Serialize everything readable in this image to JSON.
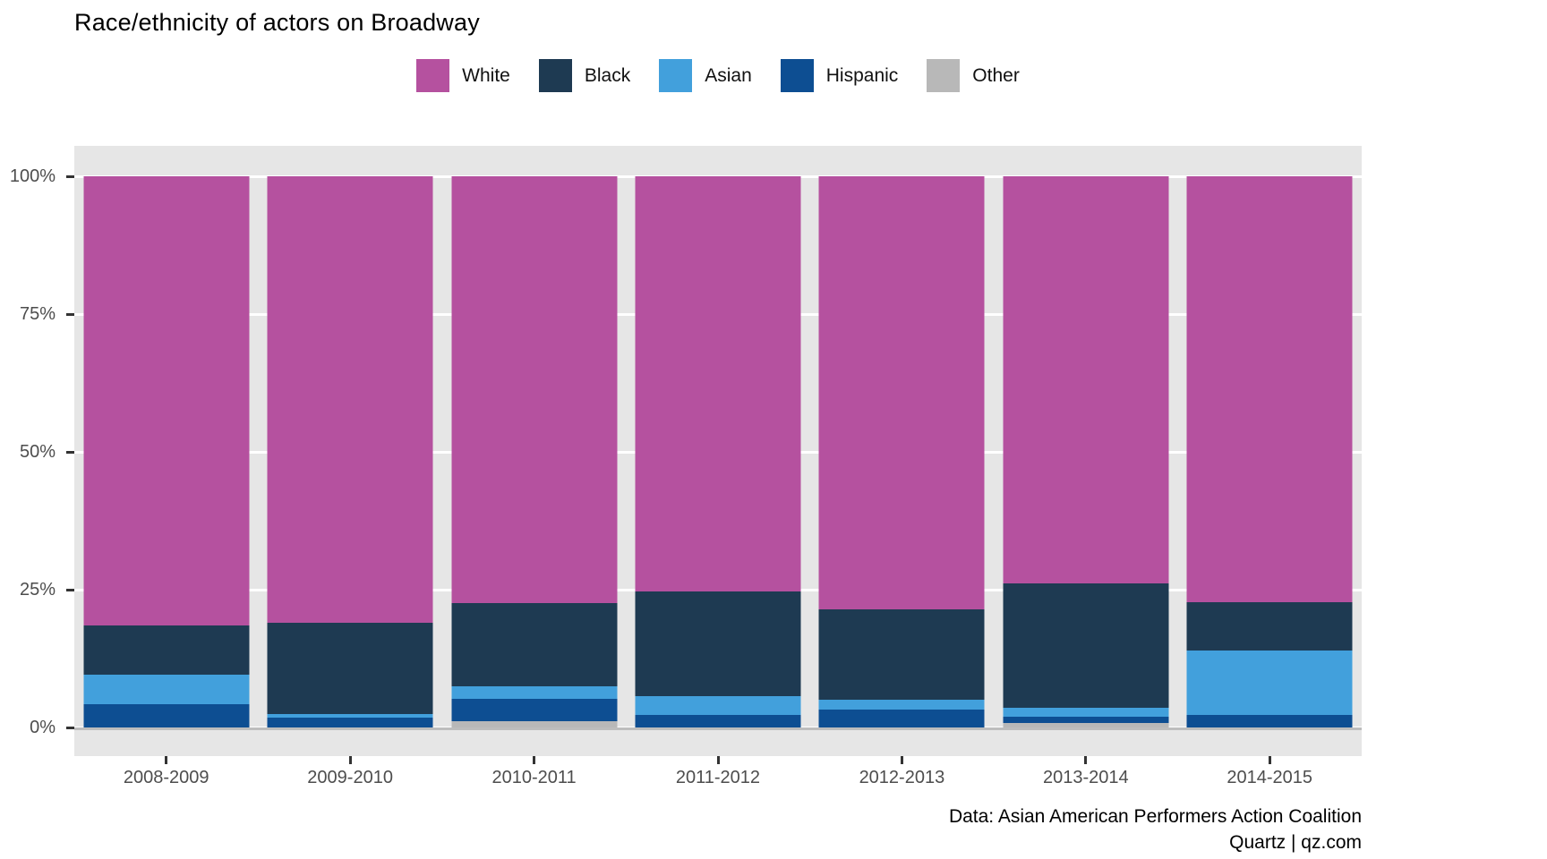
{
  "title": "Race/ethnicity of actors on Broadway",
  "source": {
    "line1": "Data: Asian American Performers Action Coalition",
    "line2": "Quartz | qz.com"
  },
  "colors": {
    "white": "#b5519f",
    "black": "#1e3a52",
    "asian": "#42a0dc",
    "hispanic": "#0d4e92",
    "other": "#b8b8b8",
    "panel_bg": "#e6e6e6",
    "gridline": "#ffffff",
    "baseline": "#bdbdbd",
    "axis_text": "#4d4d4d",
    "tick": "#333333"
  },
  "chart_data": {
    "type": "bar",
    "stacked": true,
    "percent": true,
    "title": "Race/ethnicity of actors on Broadway",
    "xlabel": "",
    "ylabel": "",
    "ylim": [
      0,
      100
    ],
    "grid": true,
    "legend_position": "top",
    "categories": [
      "2008-2009",
      "2009-2010",
      "2010-2011",
      "2011-2012",
      "2012-2013",
      "2013-2014",
      "2014-2015"
    ],
    "series": [
      {
        "name": "White",
        "color_key": "white",
        "values": [
          81.5,
          81.0,
          77.4,
          75.4,
          78.6,
          73.8,
          77.3
        ]
      },
      {
        "name": "Black",
        "color_key": "black",
        "values": [
          9.0,
          16.5,
          15.1,
          18.9,
          16.4,
          22.6,
          8.7
        ]
      },
      {
        "name": "Asian",
        "color_key": "asian",
        "values": [
          5.2,
          0.7,
          2.3,
          3.4,
          1.7,
          1.7,
          11.7
        ]
      },
      {
        "name": "Hispanic",
        "color_key": "hispanic",
        "values": [
          4.3,
          1.8,
          4.1,
          2.3,
          3.3,
          1.1,
          2.3
        ]
      },
      {
        "name": "Other",
        "color_key": "other",
        "values": [
          0,
          0,
          1.1,
          0,
          0,
          0.8,
          0
        ]
      }
    ],
    "y_ticks": [
      {
        "label": "0%",
        "value": 0
      },
      {
        "label": "25%",
        "value": 25
      },
      {
        "label": "50%",
        "value": 50
      },
      {
        "label": "75%",
        "value": 75
      },
      {
        "label": "100%",
        "value": 100
      }
    ]
  }
}
